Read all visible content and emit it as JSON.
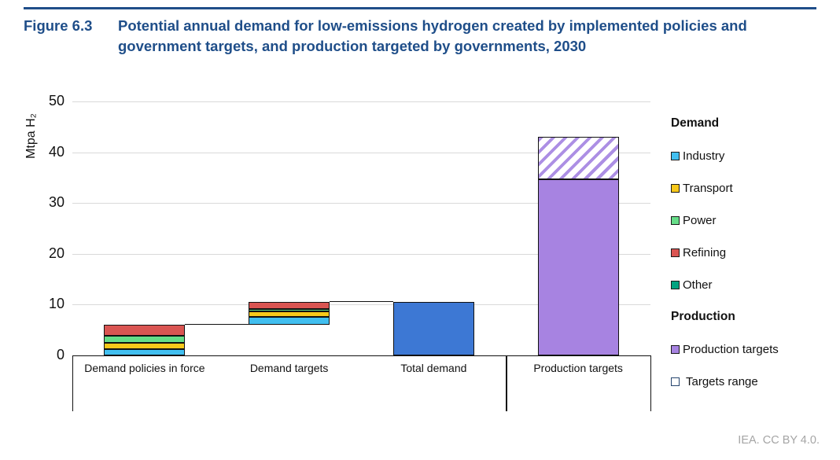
{
  "header": {
    "figure_label": "Figure 6.3",
    "title": "Potential annual demand for low-emissions hydrogen created by implemented policies and government targets, and production targeted by governments, 2030"
  },
  "footer": {
    "credit": "IEA. CC BY 4.0."
  },
  "colors": {
    "navy": "#1f4e89",
    "gridline": "#d9d9d9",
    "credit_gray": "#a5a5a5"
  },
  "chart_data": {
    "type": "bar",
    "subtype": "stacked-waterfall",
    "title": "",
    "xlabel": "",
    "ylabel": "Mtpa H₂",
    "ylim": [
      0,
      50
    ],
    "yticks": [
      0,
      10,
      20,
      30,
      40,
      50
    ],
    "grid": "horizontal",
    "legend_position": "right",
    "categories": [
      "Demand policies in force",
      "Demand targets",
      "Total demand",
      "Production targets"
    ],
    "bars": [
      {
        "category": "Demand policies in force",
        "base": 0,
        "segments": [
          {
            "series": "Industry",
            "value": 1.2
          },
          {
            "series": "Transport",
            "value": 1.3
          },
          {
            "series": "Power",
            "value": 1.3
          },
          {
            "series": "Refining",
            "value": 2.3
          }
        ],
        "top": 6.1
      },
      {
        "category": "Demand targets",
        "base": 6.1,
        "segments": [
          {
            "series": "Industry",
            "value": 1.5
          },
          {
            "series": "Transport",
            "value": 1.1
          },
          {
            "series": "Power",
            "value": 0.5
          },
          {
            "series": "Refining",
            "value": 1.4
          }
        ],
        "top": 10.6
      },
      {
        "category": "Total demand",
        "base": 0,
        "segments": [
          {
            "series": "Total demand",
            "value": 10.6
          }
        ],
        "top": 10.6
      },
      {
        "category": "Production targets",
        "base": 0,
        "segments": [
          {
            "series": "Production targets",
            "value": 34.6
          },
          {
            "series": "Targets range",
            "value": 8.4,
            "pattern": "hatch"
          }
        ],
        "top": 43.0
      }
    ],
    "connectors": [
      {
        "level": 6.1,
        "from_bar": 0,
        "to_bar": 1
      },
      {
        "level": 10.6,
        "from_bar": 1,
        "to_bar": 2
      }
    ],
    "group_divider_after_category": 2,
    "series_colors": {
      "Industry": "#41bff0",
      "Transport": "#f7c81a",
      "Power": "#66dd88",
      "Refining": "#da5552",
      "Other": "#00a380",
      "Total demand": "#3d78d4",
      "Production targets": "#a783e1",
      "Targets range": "#ac8fe4"
    },
    "legend": {
      "groups": [
        {
          "header": "Demand",
          "items": [
            {
              "label": "Industry",
              "series": "Industry"
            },
            {
              "label": "Transport",
              "series": "Transport"
            },
            {
              "label": "Power",
              "series": "Power"
            },
            {
              "label": "Refining",
              "series": "Refining"
            },
            {
              "label": "Other",
              "series": "Other"
            }
          ]
        },
        {
          "header": "Production",
          "items": [
            {
              "label": "Production targets",
              "series": "Production targets"
            },
            {
              "label": "Targets range",
              "series": "Targets range",
              "swatch": "outline"
            }
          ]
        }
      ]
    }
  }
}
